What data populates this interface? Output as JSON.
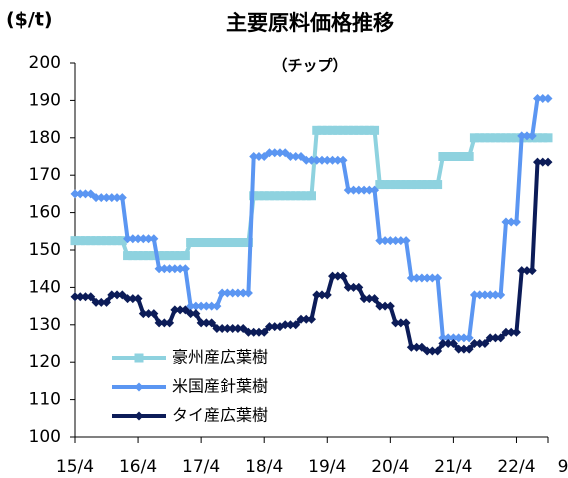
{
  "chart_data": {
    "type": "line",
    "title": "主要原料価格推移",
    "subtitle": "（チップ）",
    "y_label": "($/t)",
    "x": [
      0,
      1,
      2,
      3,
      4,
      5,
      6,
      7,
      8,
      9,
      10,
      11,
      12,
      13,
      14,
      15,
      16,
      17,
      18,
      19,
      20,
      21,
      22,
      23,
      24,
      25,
      26,
      27,
      28,
      29,
      30,
      31,
      32,
      33,
      34,
      35,
      36,
      37,
      38,
      39,
      40,
      41,
      42,
      43,
      44,
      45,
      46,
      47,
      48,
      49,
      50,
      51,
      52,
      53,
      54,
      55,
      56,
      57,
      58,
      59,
      60,
      61,
      62,
      63,
      64,
      65,
      66,
      67,
      68,
      69,
      70,
      71,
      72,
      73,
      74,
      75,
      76,
      77,
      78,
      79,
      80,
      81,
      82,
      83,
      84,
      85,
      86,
      87,
      88,
      89,
      90
    ],
    "xlim": [
      0,
      90
    ],
    "xticks": [
      {
        "value": 0,
        "label": "15/4"
      },
      {
        "value": 12,
        "label": "16/4"
      },
      {
        "value": 24,
        "label": "17/4"
      },
      {
        "value": 36,
        "label": "18/4"
      },
      {
        "value": 48,
        "label": "19/4"
      },
      {
        "value": 60,
        "label": "20/4"
      },
      {
        "value": 72,
        "label": "21/4"
      },
      {
        "value": 84,
        "label": "22/4"
      },
      {
        "value": 90,
        "label": "9"
      }
    ],
    "ylim": [
      100,
      200
    ],
    "yticks": [
      100,
      110,
      120,
      130,
      140,
      150,
      160,
      170,
      180,
      190,
      200
    ],
    "legend": "lower-left",
    "series": [
      {
        "name": "豪州産広葉樹",
        "color": "#8ed2df",
        "marker": "square",
        "values": [
          152.5,
          152.5,
          152.5,
          152.5,
          152.5,
          152.5,
          152.5,
          152.5,
          152.5,
          152.5,
          148.5,
          148.5,
          148.5,
          148.5,
          148.5,
          148.5,
          148.5,
          148.5,
          148.5,
          148.5,
          148.5,
          148.5,
          152,
          152,
          152,
          152,
          152,
          152,
          152,
          152,
          152,
          152,
          152,
          152,
          164.5,
          164.5,
          164.5,
          164.5,
          164.5,
          164.5,
          164.5,
          164.5,
          164.5,
          164.5,
          164.5,
          164.5,
          182,
          182,
          182,
          182,
          182,
          182,
          182,
          182,
          182,
          182,
          182,
          182,
          167.5,
          167.5,
          167.5,
          167.5,
          167.5,
          167.5,
          167.5,
          167.5,
          167.5,
          167.5,
          167.5,
          167.5,
          175,
          175,
          175,
          175,
          175,
          175,
          180,
          180,
          180,
          180,
          180,
          180,
          180,
          180,
          180,
          180,
          180,
          180,
          180,
          180,
          180
        ]
      },
      {
        "name": "米国産針葉樹",
        "color": "#5b96f2",
        "marker": "diamond",
        "values": [
          165,
          165,
          165,
          165,
          164,
          164,
          164,
          164,
          164,
          164,
          153,
          153,
          153,
          153,
          153,
          153,
          145,
          145,
          145,
          145,
          145,
          145,
          135,
          135,
          135,
          135,
          135,
          135,
          138.5,
          138.5,
          138.5,
          138.5,
          138.5,
          138.5,
          175,
          175,
          175,
          176,
          176,
          176,
          176,
          175,
          175,
          175,
          174,
          174,
          174,
          174,
          174,
          174,
          174,
          174,
          166,
          166,
          166,
          166,
          166,
          166,
          152.5,
          152.5,
          152.5,
          152.5,
          152.5,
          152.5,
          142.5,
          142.5,
          142.5,
          142.5,
          142.5,
          142.5,
          126.5,
          126.5,
          126.5,
          126.5,
          126.5,
          126.5,
          138,
          138,
          138,
          138,
          138,
          138,
          157.5,
          157.5,
          157.5,
          180.5,
          180.5,
          180.5,
          190.5,
          190.5,
          190.5
        ]
      },
      {
        "name": "タイ産広葉樹",
        "color": "#0c1c58",
        "marker": "diamond",
        "values": [
          137.5,
          137.5,
          137.5,
          137.5,
          136,
          136,
          136,
          138,
          138,
          138,
          137,
          137,
          137,
          133,
          133,
          133,
          130.5,
          130.5,
          130.5,
          134,
          134,
          134,
          133,
          133,
          130.5,
          130.5,
          130.5,
          129,
          129,
          129,
          129,
          129,
          129,
          128,
          128,
          128,
          128,
          129.5,
          129.5,
          129.5,
          130,
          130,
          130,
          131.5,
          131.5,
          131.5,
          138,
          138,
          138,
          143,
          143,
          143,
          140,
          140,
          140,
          137,
          137,
          137,
          135,
          135,
          135,
          130.5,
          130.5,
          130.5,
          124,
          124,
          124,
          123,
          123,
          123,
          125,
          125,
          125,
          123.5,
          123.5,
          123.5,
          125,
          125,
          125,
          126.5,
          126.5,
          126.5,
          128,
          128,
          128,
          144.5,
          144.5,
          144.5,
          173.5,
          173.5,
          173.5
        ]
      }
    ]
  }
}
